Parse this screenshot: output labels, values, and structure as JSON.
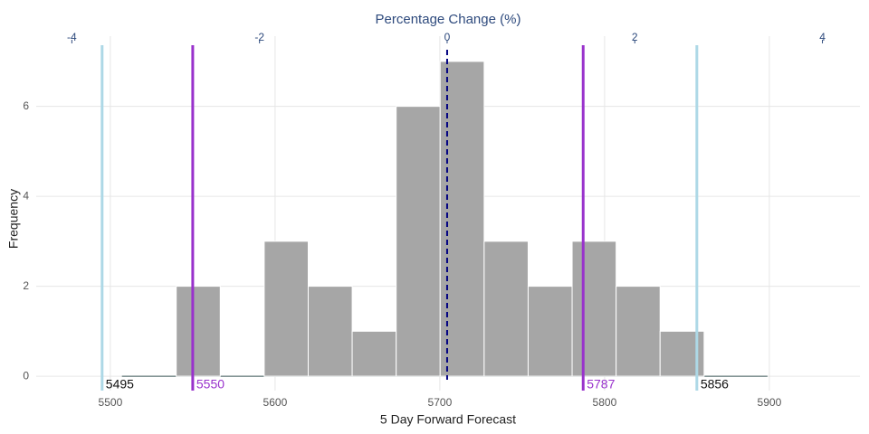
{
  "chart_data": {
    "type": "histogram",
    "xlabel": "5 Day Forward Forecast",
    "ylabel": "Frequency",
    "x2label": "Percentage Change (%)",
    "bins": [
      5540,
      5566.7,
      5593.4,
      5620.1,
      5646.8,
      5673.5,
      5700.2,
      5726.9,
      5753.6,
      5780.3,
      5807,
      5833.7,
      5860.4
    ],
    "counts": [
      2,
      0,
      3,
      2,
      1,
      6,
      7,
      3,
      2,
      3,
      2,
      1
    ],
    "color": "#a6a6a6",
    "xlim": [
      5455,
      5955
    ],
    "xticks": [
      5500,
      5600,
      5700,
      5800,
      5900
    ],
    "x2lim": [
      -4.38,
      4.4
    ],
    "x2ticks": [
      -4,
      -2,
      0,
      2,
      4
    ],
    "ylim": [
      -0.32,
      7.36
    ],
    "yticks": [
      0,
      2,
      4,
      6
    ],
    "grid": true,
    "reference_lines": [
      {
        "axis": "x2",
        "value": 0,
        "color": "#000080",
        "dashed": true
      },
      {
        "axis": "x",
        "value": 5495,
        "color": "#add8e6",
        "label_color": "#111111"
      },
      {
        "axis": "x",
        "value": 5550,
        "color": "#9932cc",
        "label_color": "#9932cc"
      },
      {
        "axis": "x",
        "value": 5787,
        "color": "#9932cc",
        "label_color": "#9932cc"
      },
      {
        "axis": "x",
        "value": 5856,
        "color": "#add8e6",
        "label_color": "#111111"
      }
    ]
  }
}
